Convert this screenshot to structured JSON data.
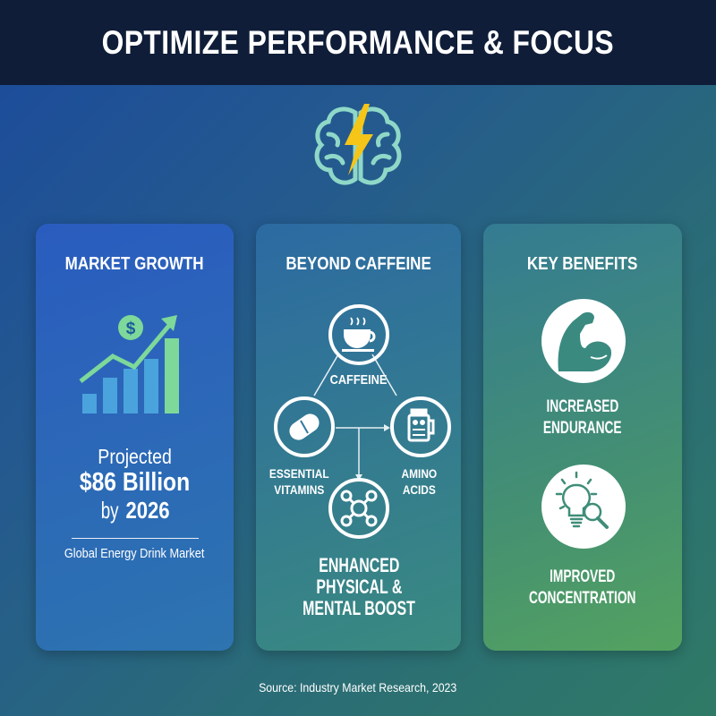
{
  "header": {
    "title": "OPTIMIZE PERFORMANCE & FOCUS"
  },
  "icons": {
    "top": "brain-lightning-icon"
  },
  "colors": {
    "header": "#0f1d38",
    "lightning": "#f5c518",
    "icon_green": "#7dd89a",
    "icon_blue": "#4aa3dc"
  },
  "market": {
    "title": "MARKET GROWTH",
    "icon": "growth-chart-dollar-icon",
    "line1": "Projected",
    "line2": "$86 Billion",
    "line3_prefix": "by",
    "line3_year": "2026",
    "caption": "Global Energy Drink Market"
  },
  "beyond": {
    "title": "BEYOND CAFFEINE",
    "nodes": [
      {
        "label": "CAFFEINE",
        "icon": "coffee-cup-icon"
      },
      {
        "label1": "ESSENTIAL",
        "label2": "VITAMINS",
        "icon": "pill-icon"
      },
      {
        "label1": "AMINO",
        "label2": "ACIDS",
        "icon": "supplement-jar-icon"
      },
      {
        "icon": "molecule-icon"
      }
    ],
    "result": [
      "ENHANCED",
      "PHYSICAL &",
      "MENTAL BOOST"
    ]
  },
  "benefits": {
    "title": "KEY BENEFITS",
    "items": [
      {
        "line1": "INCREASED",
        "line2": "ENDURANCE",
        "icon": "flexed-arm-icon"
      },
      {
        "line1": "IMPROVED",
        "line2": "CONCENTRATION",
        "icon": "lightbulb-magnifier-icon"
      }
    ]
  },
  "source": "Source: Industry Market Research, 2023"
}
